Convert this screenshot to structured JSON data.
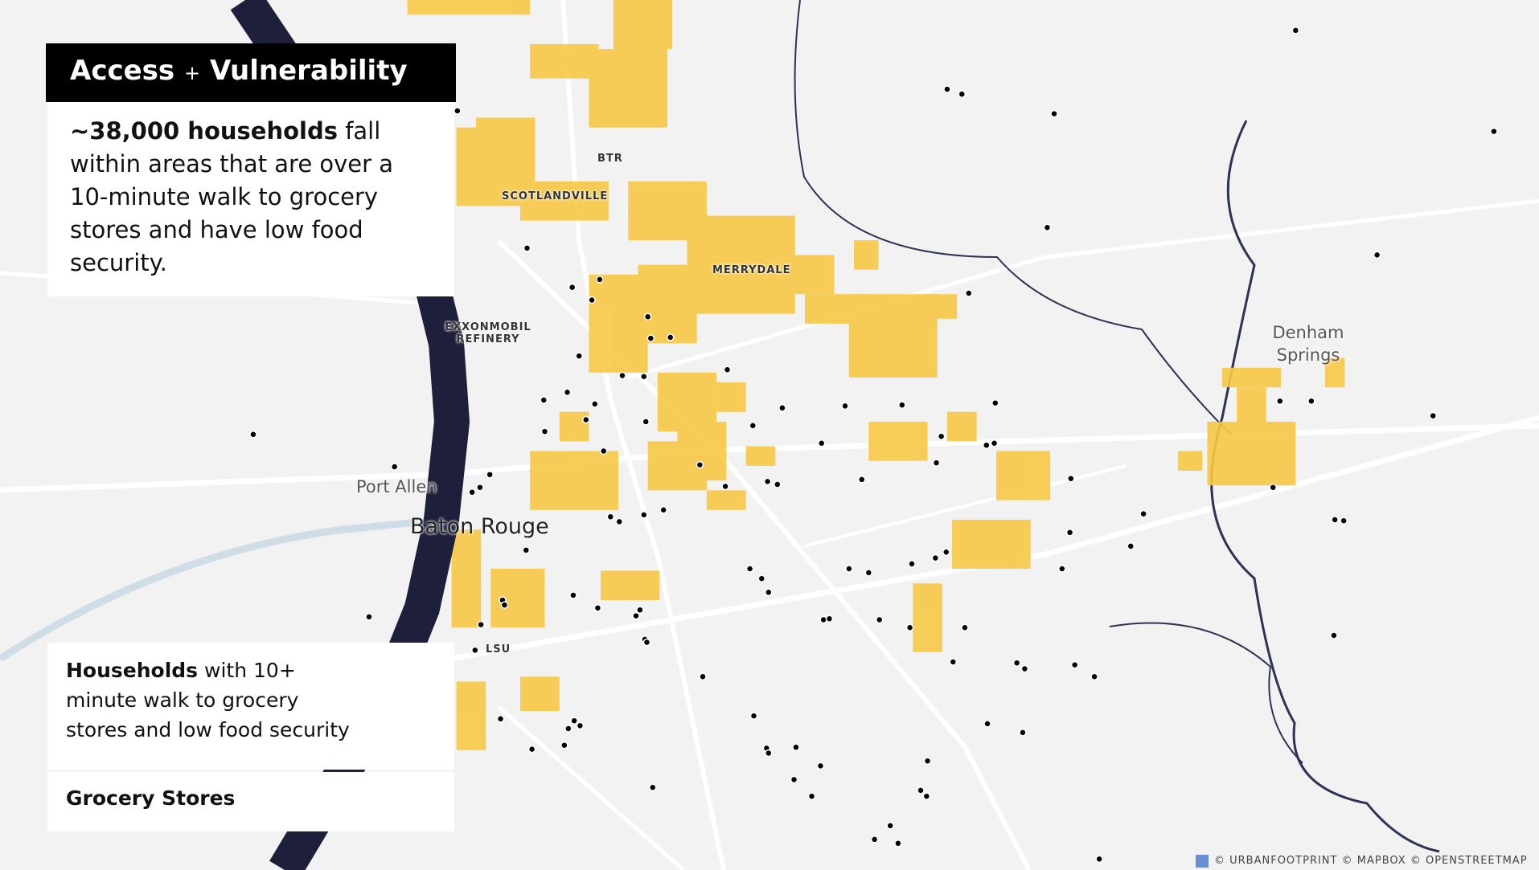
{
  "title": [
    "Access",
    "+",
    "Vulnerability"
  ],
  "summary": {
    "bold": "~38,000 households",
    "text": "fall within areas that are over a 10-minute walk to grocery stores and have low food security."
  },
  "legend": [
    {
      "bold": "Households",
      "text": "with 10+ minute walk to grocery stores and low food security"
    },
    {
      "label": "Grocery Stores"
    }
  ],
  "map_labels": [
    "BTR",
    "SCOTLANDVILLE",
    "MERRYDALE",
    "EXXONMOBIL REFINERY",
    "Denham Springs",
    "Port Allen",
    "Baton Rouge",
    "LSU"
  ],
  "attribution": [
    "© URBANFOOTPRINT",
    "© MAPBOX",
    "© OPENSTREETMAP"
  ]
}
